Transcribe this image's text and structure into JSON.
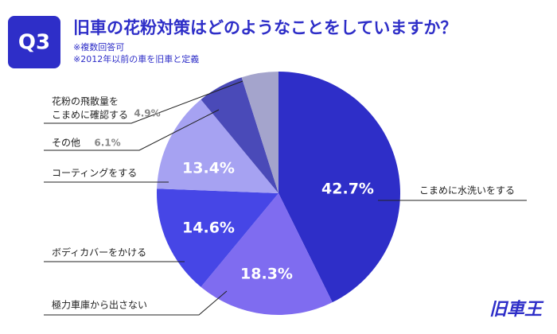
{
  "chart_data": {
    "type": "pie",
    "badge": "Q3",
    "title": "旧車の花粉対策はどのようなことをしていますか？",
    "subtitles": [
      "※複数回答可",
      "※2012年以前の車を旧車と定義"
    ],
    "categories": [
      [
        "こまめに水洗いをする"
      ],
      [
        "極力車庫から出さない"
      ],
      [
        "ボディカバーをかける"
      ],
      [
        "コーティングをする"
      ],
      [
        "その他"
      ],
      [
        "花粉の飛散量を",
        "こまめに確認する"
      ]
    ],
    "values": [
      42.7,
      18.3,
      14.6,
      13.4,
      6.1,
      4.9
    ],
    "value_labels": [
      "42.7%",
      "18.3%",
      "14.6%",
      "13.4%",
      "6.1%",
      "4.9%"
    ],
    "colors": [
      "#2e2ec8",
      "#7f6cf0",
      "#4646e6",
      "#a6a2f2",
      "#4a4ab8",
      "#a4a4cc"
    ],
    "logo": "旧車王"
  }
}
